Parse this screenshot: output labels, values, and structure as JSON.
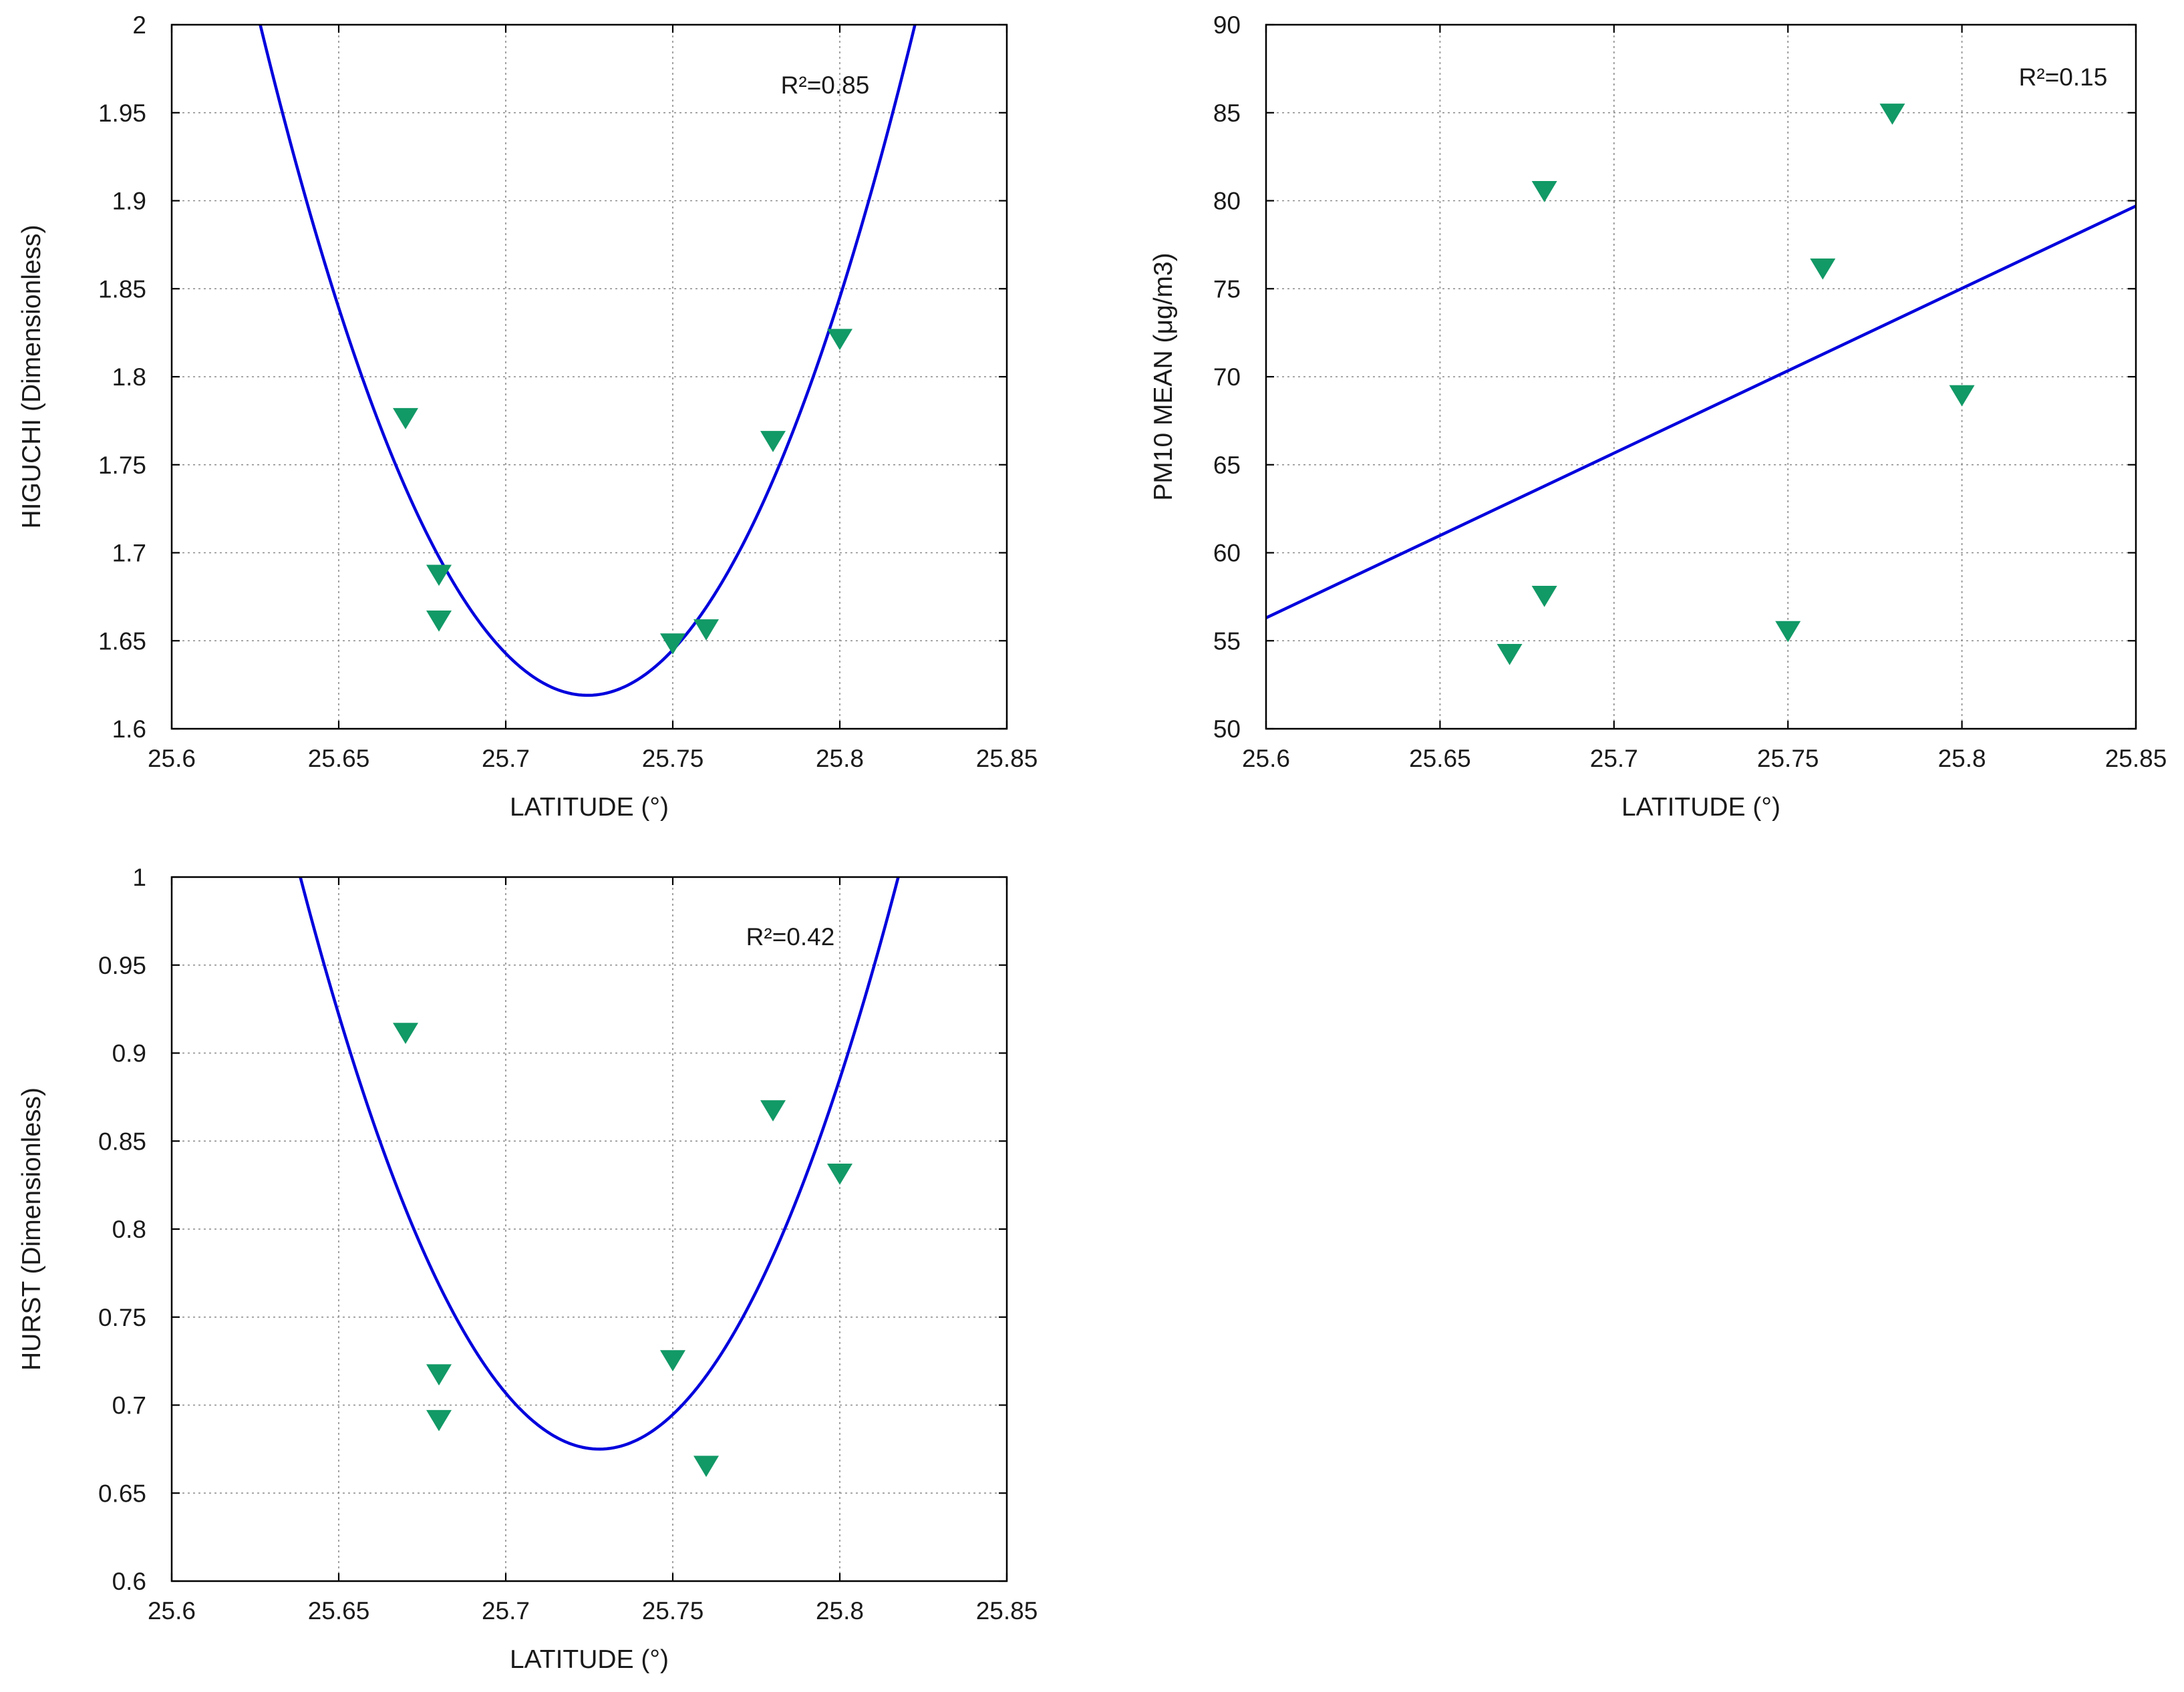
{
  "colors": {
    "fit_line": "#0000dd",
    "marker": "#119966",
    "background": "#ffffff"
  },
  "marker_symbol": "triangle-down",
  "chart_data": [
    {
      "id": "higuchi",
      "type": "scatter",
      "title": "",
      "xlabel": "LATITUDE (°)",
      "ylabel": "HIGUCHI (Dimensionless)",
      "xlim": [
        25.6,
        25.85
      ],
      "ylim": [
        1.6,
        2.0
      ],
      "xticks": [
        25.6,
        25.65,
        25.7,
        25.75,
        25.8,
        25.85
      ],
      "xtick_labels": [
        "25.6",
        "25.65",
        "25.7",
        "25.75",
        "25.8",
        "25.85"
      ],
      "yticks": [
        1.6,
        1.65,
        1.7,
        1.75,
        1.8,
        1.85,
        1.9,
        1.95,
        2.0
      ],
      "ytick_labels": [
        "1.6",
        "1.65",
        "1.7",
        "1.75",
        "1.8",
        "1.85",
        "1.9",
        "1.95",
        "2"
      ],
      "grid": true,
      "r2_label": "R²=0.85",
      "points": {
        "x": [
          25.67,
          25.68,
          25.68,
          25.75,
          25.76,
          25.78,
          25.8
        ],
        "y": [
          1.777,
          1.688,
          1.662,
          1.649,
          1.657,
          1.764,
          1.822
        ]
      },
      "fit": {
        "kind": "quadratic",
        "vertex_x": 25.7245,
        "vertex_y": 1.619,
        "through_x": 25.8225,
        "through_y": 2.0
      }
    },
    {
      "id": "pm10",
      "type": "scatter",
      "title": "",
      "xlabel": "LATITUDE (°)",
      "ylabel": "PM10 MEAN (μg/m3)",
      "xlim": [
        25.6,
        25.85
      ],
      "ylim": [
        50,
        90
      ],
      "xticks": [
        25.6,
        25.65,
        25.7,
        25.75,
        25.8,
        25.85
      ],
      "xtick_labels": [
        "25.6",
        "25.65",
        "25.7",
        "25.75",
        "25.8",
        "25.85"
      ],
      "yticks": [
        50,
        55,
        60,
        65,
        70,
        75,
        80,
        85,
        90
      ],
      "ytick_labels": [
        "50",
        "55",
        "60",
        "65",
        "70",
        "75",
        "80",
        "85",
        "90"
      ],
      "grid": true,
      "r2_label": "R²=0.15",
      "points": {
        "x": [
          25.67,
          25.68,
          25.68,
          25.75,
          25.76,
          25.78,
          25.8
        ],
        "y": [
          54.3,
          80.6,
          57.6,
          55.6,
          76.2,
          85.0,
          69.0
        ]
      },
      "fit": {
        "kind": "linear",
        "x": [
          25.6,
          25.85
        ],
        "y": [
          56.3,
          79.7
        ]
      }
    },
    {
      "id": "hurst",
      "type": "scatter",
      "title": "",
      "xlabel": "LATITUDE (°)",
      "ylabel": "HURST (Dimensionless)",
      "xlim": [
        25.6,
        25.85
      ],
      "ylim": [
        0.6,
        1.0
      ],
      "xticks": [
        25.6,
        25.65,
        25.7,
        25.75,
        25.8,
        25.85
      ],
      "xtick_labels": [
        "25.6",
        "25.65",
        "25.7",
        "25.75",
        "25.8",
        "25.85"
      ],
      "yticks": [
        0.6,
        0.65,
        0.7,
        0.75,
        0.8,
        0.85,
        0.9,
        0.95,
        1.0
      ],
      "ytick_labels": [
        "0.6",
        "0.65",
        "0.7",
        "0.75",
        "0.8",
        "0.85",
        "0.9",
        "0.95",
        "1"
      ],
      "grid": true,
      "r2_label": "R²=0.42",
      "points": {
        "x": [
          25.67,
          25.68,
          25.68,
          25.75,
          25.76,
          25.78,
          25.8
        ],
        "y": [
          0.912,
          0.718,
          0.692,
          0.726,
          0.666,
          0.868,
          0.832
        ]
      },
      "fit": {
        "kind": "quadratic",
        "vertex_x": 25.728,
        "vertex_y": 0.675,
        "through_x": 25.8175,
        "through_y": 1.0
      }
    }
  ]
}
